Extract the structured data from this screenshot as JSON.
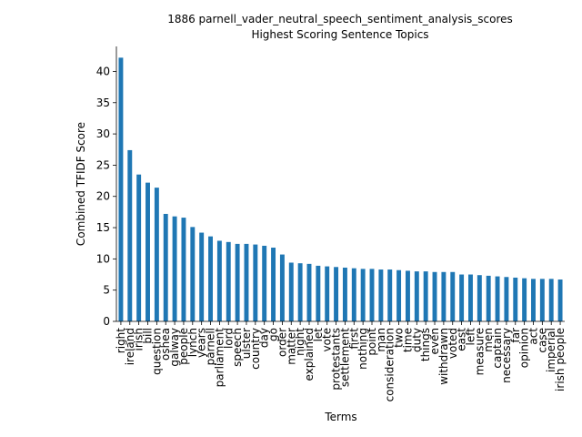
{
  "chart_data": {
    "type": "bar",
    "title": "1886 parnell_vader_neutral_speech_sentiment_analysis_scores",
    "subtitle": "Highest Scoring Sentence Topics",
    "xlabel": "Terms",
    "ylabel": "Combined TFIDF Score",
    "ylim": [
      0,
      44
    ],
    "yticks": [
      0,
      5,
      10,
      15,
      20,
      25,
      30,
      35,
      40
    ],
    "grid": false,
    "bar_color": "#1f77b4",
    "categories": [
      "right",
      "ireland",
      "irish",
      "bill",
      "question",
      "oshea",
      "galway",
      "people",
      "lynch",
      "years",
      "parnell",
      "parliament",
      "lord",
      "speech",
      "ulster",
      "country",
      "day",
      "go",
      "order",
      "matter",
      "night",
      "explained",
      "let",
      "vote",
      "protestants",
      "settlement",
      "first",
      "nothing",
      "point",
      "man",
      "consideration",
      "two",
      "time",
      "duty",
      "things",
      "even",
      "withdrawn",
      "voted",
      "east",
      "left",
      "measure",
      "men",
      "captain",
      "necessary",
      "far",
      "opinion",
      "act",
      "case",
      "imperial",
      "irish people"
    ],
    "values": [
      42.2,
      27.4,
      23.5,
      22.2,
      21.4,
      17.2,
      16.8,
      16.6,
      15.1,
      14.2,
      13.6,
      12.9,
      12.7,
      12.4,
      12.4,
      12.3,
      12.1,
      11.8,
      10.7,
      9.4,
      9.3,
      9.2,
      8.9,
      8.8,
      8.7,
      8.6,
      8.5,
      8.4,
      8.4,
      8.3,
      8.3,
      8.2,
      8.1,
      8.0,
      8.0,
      7.9,
      7.9,
      7.9,
      7.5,
      7.5,
      7.4,
      7.3,
      7.2,
      7.1,
      7.0,
      6.9,
      6.8,
      6.8,
      6.8,
      6.7
    ]
  }
}
